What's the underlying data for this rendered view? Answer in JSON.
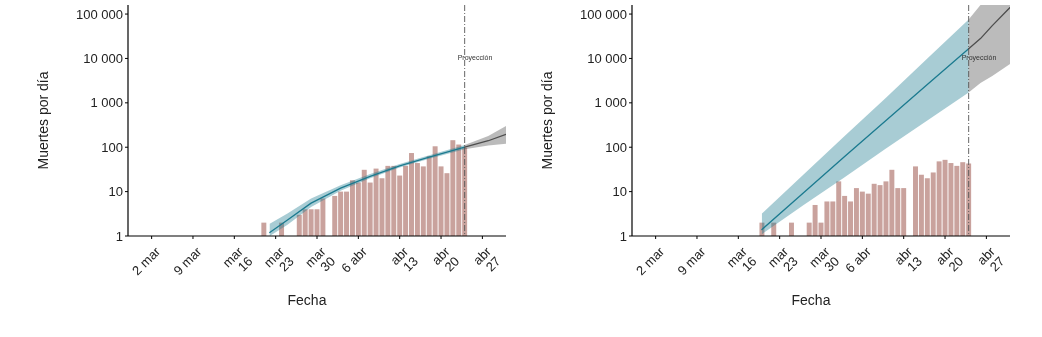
{
  "chart_data": [
    {
      "type": "bar",
      "xlabel": "Fecha",
      "ylabel": "Muertes por día",
      "log": true,
      "xlim": [
        "--02-26",
        "--05-01"
      ],
      "xticks": [
        {
          "value": "--03-02",
          "label": "2 mar"
        },
        {
          "value": "--03-09",
          "label": "9 mar"
        },
        {
          "value": "--03-16",
          "label": "mar\n16"
        },
        {
          "value": "--03-23",
          "label": "mar\n23"
        },
        {
          "value": "--03-30",
          "label": "mar\n30"
        },
        {
          "value": "--04-06",
          "label": "6 abr"
        },
        {
          "value": "--04-13",
          "label": "abr\n13"
        },
        {
          "value": "--04-20",
          "label": "abr\n20"
        },
        {
          "value": "--04-27",
          "label": "abr\n27"
        }
      ],
      "ylim": [
        1,
        160000
      ],
      "yticks": [
        1,
        10,
        100,
        {
          "value": 1000,
          "label": "1 000"
        },
        {
          "value": 10000,
          "label": "10 000"
        },
        {
          "value": 100000,
          "label": "100 000"
        }
      ],
      "ref_lines": [
        {
          "axis": "x",
          "value": "--04-24",
          "label": "Proyección",
          "line_style": "dashed",
          "color": "#555555"
        }
      ],
      "series": [
        {
          "color": "#c9a29d",
          "x": [
            "--03-21",
            "--03-24",
            "--03-27",
            "--03-28",
            "--03-29",
            "--03-30",
            "--03-31",
            "--04-02",
            "--04-03",
            "--04-04",
            "--04-05",
            "--04-06",
            "--04-07",
            "--04-08",
            "--04-09",
            "--04-10",
            "--04-11",
            "--04-12",
            "--04-13",
            "--04-14",
            "--04-15",
            "--04-16",
            "--04-17",
            "--04-18",
            "--04-19",
            "--04-20",
            "--04-21",
            "--04-22",
            "--04-23",
            "--04-24"
          ],
          "values": [
            2,
            2,
            3,
            4,
            4,
            4,
            7,
            8,
            10,
            10,
            18,
            16,
            31,
            16,
            33,
            20,
            38,
            38,
            23,
            38,
            74,
            44,
            37,
            63,
            105,
            37,
            26,
            144,
            115,
            97
          ]
        },
        {
          "type": "line",
          "color": "#1b7a8f",
          "x": [
            "--03-22",
            "--03-25",
            "--03-29",
            "--04-03",
            "--04-08",
            "--04-13",
            "--04-18",
            "--04-24"
          ],
          "values": [
            1.2,
            2.3,
            5.5,
            12,
            22,
            38,
            60,
            100
          ],
          "lower": [
            1,
            1.8,
            4.5,
            10.5,
            20,
            35,
            55,
            90
          ],
          "upper": [
            1.9,
            3.2,
            7,
            14,
            25,
            42,
            66,
            112
          ]
        },
        {
          "type": "line",
          "color": "#4d4d4d",
          "x": [
            "--04-24",
            "--04-28",
            "--05-01"
          ],
          "values": [
            100,
            140,
            195
          ],
          "lower": [
            90,
            110,
            120
          ],
          "upper": [
            112,
            180,
            300
          ]
        }
      ]
    },
    {
      "type": "bar",
      "xlabel": "Fecha",
      "ylabel": "Muertes por día",
      "log": true,
      "xlim": [
        "--02-26",
        "--05-01"
      ],
      "xticks": [
        {
          "value": "--03-02",
          "label": "2 mar"
        },
        {
          "value": "--03-09",
          "label": "9 mar"
        },
        {
          "value": "--03-16",
          "label": "mar\n16"
        },
        {
          "value": "--03-23",
          "label": "mar\n23"
        },
        {
          "value": "--03-30",
          "label": "mar\n30"
        },
        {
          "value": "--04-06",
          "label": "6 abr"
        },
        {
          "value": "--04-13",
          "label": "abr\n13"
        },
        {
          "value": "--04-20",
          "label": "abr\n20"
        },
        {
          "value": "--04-27",
          "label": "abr\n27"
        }
      ],
      "ylim": [
        1,
        160000
      ],
      "yticks": [
        1,
        10,
        100,
        {
          "value": 1000,
          "label": "1 000"
        },
        {
          "value": 10000,
          "label": "10 000"
        },
        {
          "value": 100000,
          "label": "100 000"
        }
      ],
      "ref_lines": [
        {
          "axis": "x",
          "value": "--04-24",
          "label": "Proyección",
          "line_style": "dashed",
          "color": "#555555"
        }
      ],
      "series": [
        {
          "color": "#c9a29d",
          "x": [
            "--03-20",
            "--03-22",
            "--03-25",
            "--03-28",
            "--03-29",
            "--03-30",
            "--03-31",
            "--04-01",
            "--04-02",
            "--04-03",
            "--04-04",
            "--04-05",
            "--04-06",
            "--04-07",
            "--04-08",
            "--04-09",
            "--04-10",
            "--04-11",
            "--04-12",
            "--04-13",
            "--04-15",
            "--04-16",
            "--04-17",
            "--04-18",
            "--04-19",
            "--04-20",
            "--04-21",
            "--04-22",
            "--04-23",
            "--04-24"
          ],
          "values": [
            2,
            2,
            2,
            2,
            5,
            2,
            6,
            6,
            17,
            8,
            6,
            12,
            10,
            9,
            15,
            14,
            17,
            31,
            12,
            12,
            37,
            24,
            20,
            27,
            48,
            52,
            44,
            38,
            46,
            43
          ]
        },
        {
          "type": "line",
          "color": "#1b7a8f",
          "x": [
            "--03-20",
            "--03-27",
            "--04-03",
            "--04-10",
            "--04-17",
            "--04-24"
          ],
          "values": [
            1.4,
            9.3,
            62,
            400,
            2600,
            16500
          ],
          "lower": [
            1.1,
            4.9,
            21,
            93,
            400,
            1700
          ],
          "upper": [
            3.2,
            24,
            178,
            1300,
            10000,
            75000
          ]
        },
        {
          "type": "line",
          "color": "#4d4d4d",
          "x": [
            "--04-24",
            "--04-26",
            "--04-28",
            "--05-01"
          ],
          "values": [
            16500,
            28000,
            55000,
            140000
          ],
          "lower": [
            1700,
            2800,
            4000,
            7500
          ],
          "upper": [
            75000,
            160000,
            160000,
            160000
          ]
        }
      ]
    }
  ]
}
